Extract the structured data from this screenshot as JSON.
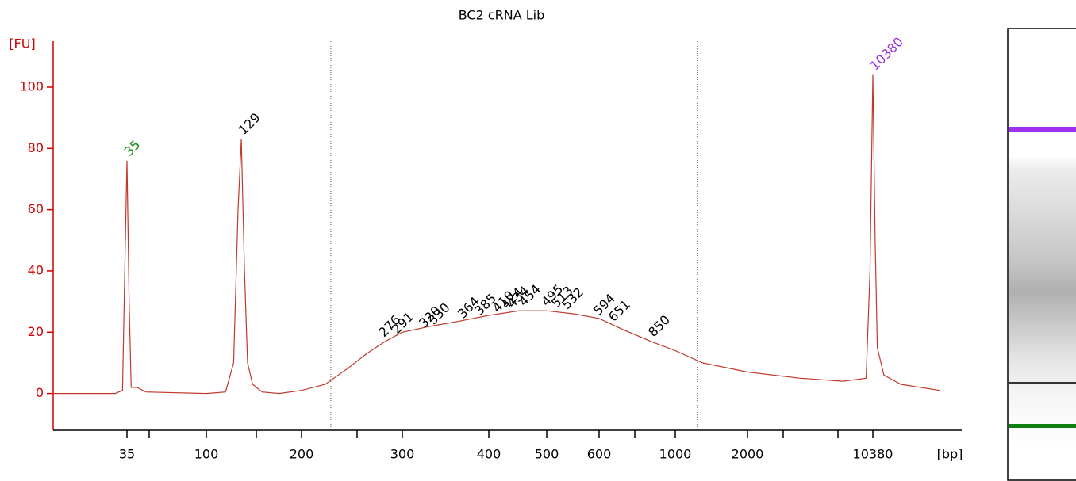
{
  "chart_data": {
    "type": "line",
    "title": "BC2 cRNA Lib",
    "y_label": "[FU]",
    "x_label": "[bp]",
    "axis_color": "#d00000",
    "ylim": [
      -12,
      115
    ],
    "yticks": [
      0,
      20,
      40,
      60,
      80,
      100
    ],
    "xticks": [
      35,
      100,
      200,
      300,
      400,
      500,
      600,
      1000,
      2000,
      10380
    ],
    "series": [
      {
        "name": "BC2 cRNA Lib",
        "color": "#c0392b",
        "x": [
          13,
          30,
          33,
          34,
          35,
          36,
          37,
          40,
          45,
          100,
          115,
          122,
          126,
          129,
          132,
          135,
          140,
          150,
          170,
          200,
          220,
          240,
          260,
          280,
          300,
          330,
          360,
          400,
          450,
          500,
          550,
          600,
          700,
          850,
          1000,
          1300,
          2000,
          4000,
          7000,
          9500,
          10000,
          10380,
          10700,
          11000,
          12000,
          15000,
          25000
        ],
        "values": [
          0,
          0,
          1,
          40,
          76,
          30,
          2,
          2,
          0.5,
          0,
          0.5,
          10,
          60,
          83,
          40,
          10,
          3,
          0.5,
          0,
          1,
          3,
          8,
          13,
          17,
          20,
          22,
          23.5,
          25.5,
          27,
          27,
          26,
          24.5,
          21,
          17,
          14,
          10,
          7,
          5,
          4,
          5,
          40,
          104,
          50,
          15,
          6,
          3,
          1
        ]
      }
    ],
    "peaks": {
      "x": [
        35,
        129,
        276,
        291,
        320,
        330,
        364,
        385,
        410,
        424,
        434,
        454,
        495,
        513,
        532,
        594,
        651,
        850,
        10380
      ],
      "values": [
        76,
        83,
        17,
        18,
        20,
        21,
        23,
        24,
        25,
        26,
        26.5,
        27,
        27,
        26.5,
        26,
        24,
        22,
        17,
        104
      ],
      "colors": [
        "#1a8a1a",
        "#000000",
        "#000000",
        "#000000",
        "#000000",
        "#000000",
        "#000000",
        "#000000",
        "#000000",
        "#000000",
        "#000000",
        "#000000",
        "#000000",
        "#000000",
        "#000000",
        "#000000",
        "#000000",
        "#000000",
        "#9b30e0"
      ]
    },
    "region": [
      225,
      1240
    ]
  }
}
